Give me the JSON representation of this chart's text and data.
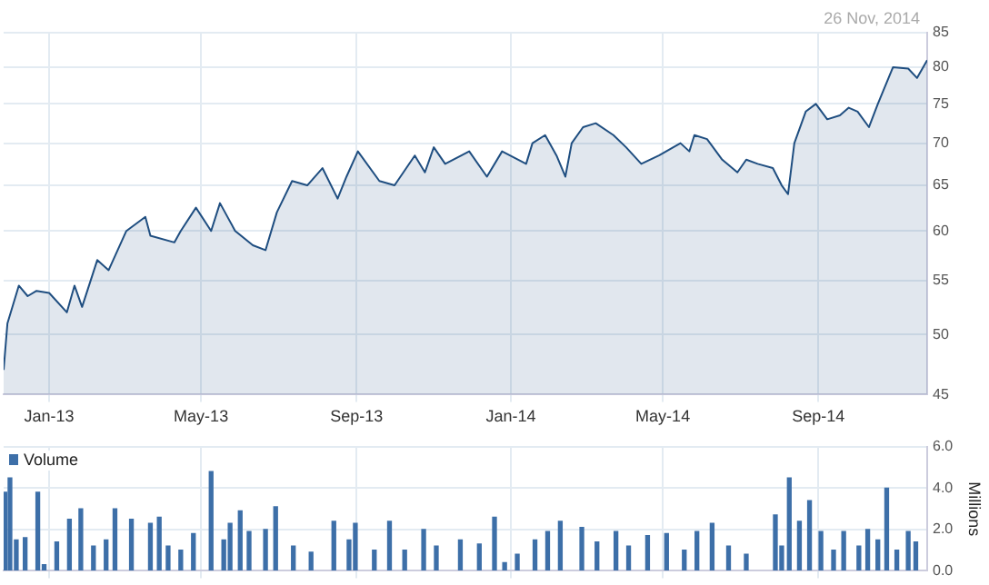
{
  "chart_data": [
    {
      "type": "area",
      "annotations": [
        "26 Nov, 2014"
      ],
      "xlim": [
        "2012-11-26",
        "2014-11-26"
      ],
      "xticks": [
        {
          "value": "2013-01",
          "label": "Jan-13"
        },
        {
          "value": "2013-05",
          "label": "May-13"
        },
        {
          "value": "2013-09",
          "label": "Sep-13"
        },
        {
          "value": "2014-01",
          "label": "Jan-14"
        },
        {
          "value": "2014-05",
          "label": "May-14"
        },
        {
          "value": "2014-09",
          "label": "Sep-14"
        }
      ],
      "ylim": [
        45,
        85
      ],
      "yticks": [
        45,
        50,
        55,
        60,
        65,
        70,
        75,
        80,
        85
      ],
      "log": true,
      "grid": true,
      "x": [
        "2012-11-26",
        "2012-11-29",
        "2012-12-08",
        "2012-12-15",
        "2012-12-22",
        "2013-01-01",
        "2013-01-15",
        "2013-01-21",
        "2013-01-27",
        "2013-02-08",
        "2013-02-17",
        "2013-03-03",
        "2013-03-18",
        "2013-03-22",
        "2013-04-10",
        "2013-04-15",
        "2013-04-27",
        "2013-05-09",
        "2013-05-16",
        "2013-05-28",
        "2013-06-11",
        "2013-06-21",
        "2013-06-30",
        "2013-07-12",
        "2013-07-24",
        "2013-08-05",
        "2013-08-17",
        "2013-08-24",
        "2013-09-02",
        "2013-09-19",
        "2013-10-01",
        "2013-10-17",
        "2013-10-25",
        "2013-11-01",
        "2013-11-10",
        "2013-11-29",
        "2013-12-13",
        "2013-12-25",
        "2014-01-13",
        "2014-01-18",
        "2014-01-28",
        "2014-02-06",
        "2014-02-13",
        "2014-02-18",
        "2014-02-27",
        "2014-03-09",
        "2014-03-23",
        "2014-04-02",
        "2014-04-14",
        "2014-04-28",
        "2014-05-15",
        "2014-05-22",
        "2014-05-26",
        "2014-06-05",
        "2014-06-17",
        "2014-06-29",
        "2014-07-06",
        "2014-07-15",
        "2014-07-27",
        "2014-08-03",
        "2014-08-08",
        "2014-08-13",
        "2014-08-22",
        "2014-08-30",
        "2014-09-08",
        "2014-09-18",
        "2014-09-25",
        "2014-10-02",
        "2014-10-11",
        "2014-10-18",
        "2014-10-30",
        "2014-11-11",
        "2014-11-18",
        "2014-11-26"
      ],
      "series": [
        {
          "color": "#1f4e80",
          "values": [
            47,
            51,
            54.5,
            53.5,
            54,
            53.8,
            52,
            54.5,
            52.5,
            57,
            56,
            60,
            61.5,
            59.5,
            58.8,
            60,
            62.5,
            60,
            63,
            60,
            58.5,
            58,
            62,
            65.5,
            65,
            67,
            63.5,
            66,
            69,
            65.5,
            65,
            68.5,
            66.5,
            69.5,
            67.5,
            69,
            66,
            69,
            67.5,
            70,
            71,
            68.5,
            66,
            70,
            72,
            72.5,
            71,
            69.5,
            67.5,
            68.5,
            70,
            69,
            71,
            70.5,
            68,
            66.5,
            68,
            67.5,
            67,
            65,
            64,
            70,
            74,
            75,
            73,
            73.5,
            74.5,
            74,
            72,
            75,
            80,
            79.8,
            78.5,
            81
          ]
        }
      ]
    },
    {
      "type": "bar",
      "ylabel": "Millions",
      "xlim": [
        "2012-11-26",
        "2014-11-26"
      ],
      "xticks": [
        {
          "value": "2013-01",
          "label": null
        },
        {
          "value": "2013-05",
          "label": null
        },
        {
          "value": "2013-09",
          "label": null
        },
        {
          "value": "2014-01",
          "label": null
        },
        {
          "value": "2014-05",
          "label": null
        },
        {
          "value": "2014-09",
          "label": null
        }
      ],
      "ylim": [
        0,
        6
      ],
      "yticks": [
        {
          "value": 0,
          "label": "0.0"
        },
        {
          "value": 2,
          "label": "2.0"
        },
        {
          "value": 4,
          "label": "4.0"
        },
        {
          "value": 6,
          "label": "6.0"
        }
      ],
      "grid": true,
      "legend": "top left",
      "tick_labels": "y",
      "series": [
        {
          "name": "Volume",
          "color": "#3d6fa8",
          "x": [
            "2012-11-27",
            "2012-12-01",
            "2012-12-06",
            "2012-12-13",
            "2012-12-23",
            "2012-12-28",
            "2013-01-07",
            "2013-01-17",
            "2013-01-26",
            "2013-02-05",
            "2013-02-15",
            "2013-02-22",
            "2013-03-07",
            "2013-03-22",
            "2013-03-29",
            "2013-04-05",
            "2013-04-15",
            "2013-04-25",
            "2013-05-09",
            "2013-05-19",
            "2013-05-24",
            "2013-06-01",
            "2013-06-08",
            "2013-06-21",
            "2013-06-29",
            "2013-07-13",
            "2013-07-27",
            "2013-08-14",
            "2013-08-26",
            "2013-08-31",
            "2013-09-15",
            "2013-09-27",
            "2013-10-09",
            "2013-10-24",
            "2013-11-03",
            "2013-11-22",
            "2013-12-07",
            "2013-12-19",
            "2013-12-27",
            "2014-01-06",
            "2014-01-20",
            "2014-01-30",
            "2014-02-09",
            "2014-02-26",
            "2014-03-10",
            "2014-03-25",
            "2014-04-04",
            "2014-04-19",
            "2014-05-04",
            "2014-05-18",
            "2014-05-28",
            "2014-06-09",
            "2014-06-22",
            "2014-07-06",
            "2014-07-29",
            "2014-08-03",
            "2014-08-09",
            "2014-08-17",
            "2014-08-25",
            "2014-09-03",
            "2014-09-13",
            "2014-09-21",
            "2014-10-03",
            "2014-10-10",
            "2014-10-18",
            "2014-10-25",
            "2014-11-02",
            "2014-11-11",
            "2014-11-17"
          ],
          "values": [
            3.8,
            4.5,
            1.5,
            1.6,
            3.8,
            0.3,
            1.4,
            2.5,
            3.0,
            1.2,
            1.5,
            3.0,
            2.5,
            2.3,
            2.6,
            1.2,
            1.0,
            1.8,
            4.8,
            1.5,
            2.3,
            2.9,
            1.9,
            2.0,
            3.1,
            1.2,
            0.9,
            2.4,
            1.5,
            2.3,
            1.0,
            2.4,
            1.0,
            2.0,
            1.2,
            1.5,
            1.3,
            2.6,
            0.4,
            0.8,
            1.5,
            1.9,
            2.4,
            2.1,
            1.4,
            1.9,
            1.2,
            1.7,
            1.8,
            1.0,
            1.9,
            2.3,
            1.2,
            0.8,
            2.7,
            1.2,
            4.5,
            2.4,
            3.4,
            1.9,
            1.0,
            1.9,
            1.2,
            2.0,
            1.5,
            4.0,
            1.0,
            1.9,
            1.4
          ]
        }
      ]
    }
  ]
}
